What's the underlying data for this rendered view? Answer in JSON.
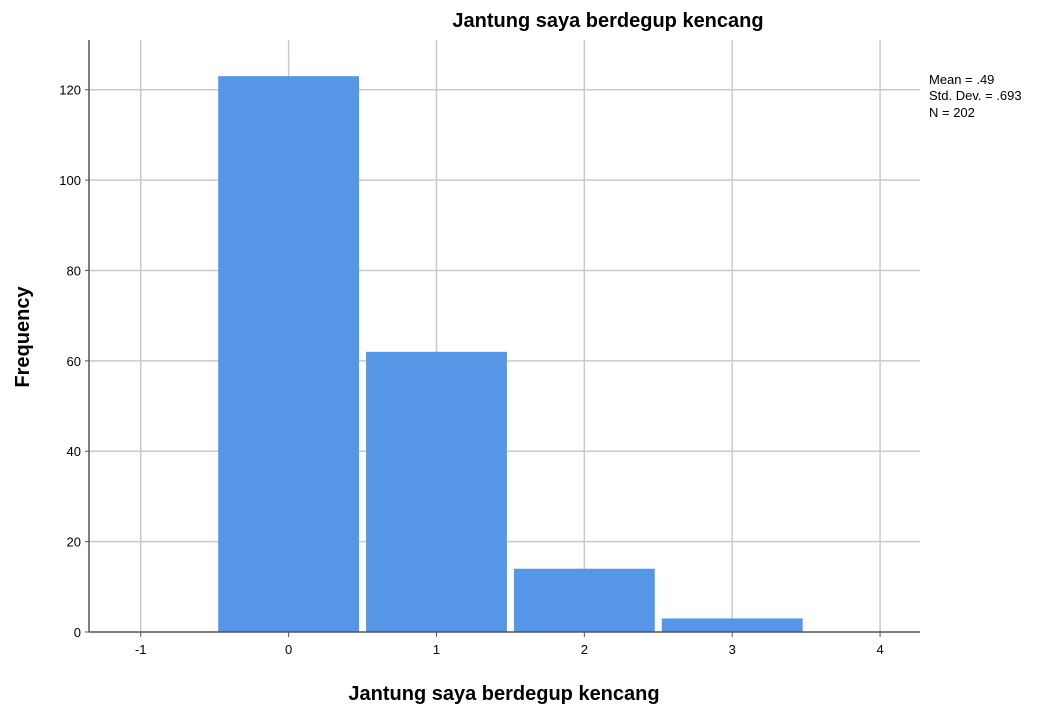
{
  "chart_data": {
    "type": "bar",
    "title": "Jantung saya berdegup kencang",
    "xlabel": "Jantung saya berdegup kencang",
    "ylabel": "Frequency",
    "categories": [
      0,
      1,
      2,
      3
    ],
    "values": [
      123,
      62,
      14,
      3
    ],
    "x_ticks": [
      "-1",
      "0",
      "1",
      "2",
      "3",
      "4"
    ],
    "y_ticks": [
      "0",
      "20",
      "40",
      "60",
      "80",
      "100",
      "120"
    ],
    "xlim": [
      -1.35,
      4.27
    ],
    "ylim": [
      0,
      131
    ],
    "grid": true,
    "bar_color": "#5596e6",
    "stats": {
      "mean": "Mean = .49",
      "std_dev": "Std. Dev. = .693",
      "n": "N = 202"
    }
  }
}
